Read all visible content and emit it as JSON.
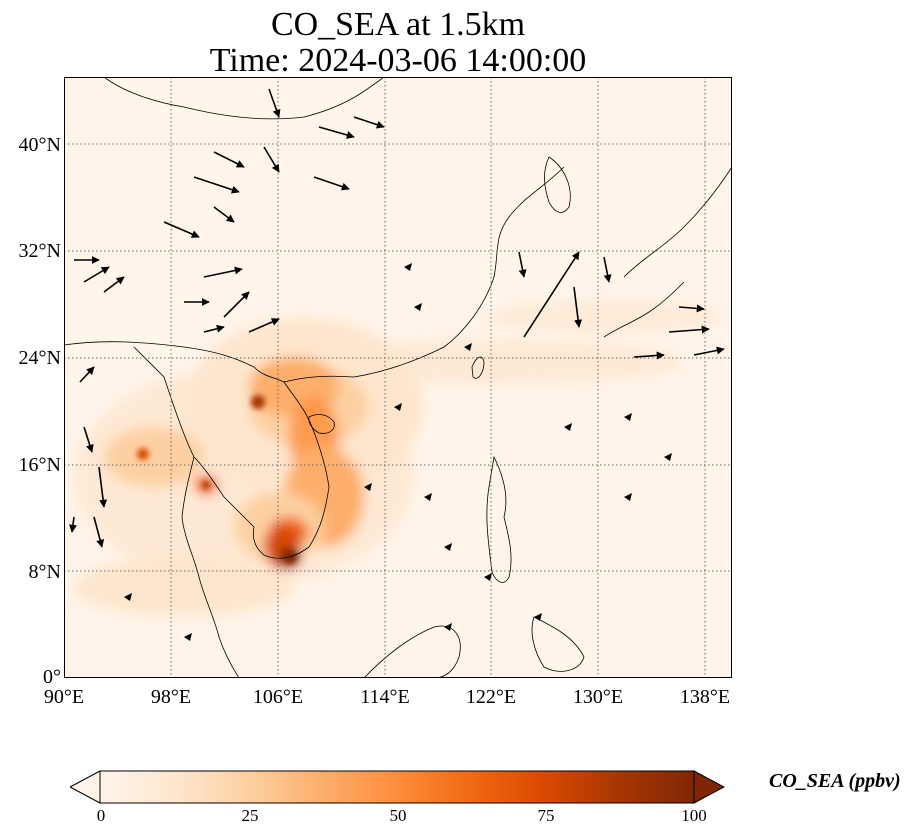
{
  "title": {
    "line1": "CO_SEA at 1.5km",
    "line2": "Time: 2024-03-06 14:00:00"
  },
  "map": {
    "variable": "CO_SEA",
    "level": "1.5km",
    "lon_range": [
      90,
      140
    ],
    "lat_range": [
      0,
      45
    ],
    "lat_ticks": [
      "0°",
      "8°N",
      "16°N",
      "24°N",
      "32°N",
      "40°N"
    ],
    "lon_ticks": [
      "90°E",
      "98°E",
      "106°E",
      "114°E",
      "122°E",
      "130°E",
      "138°E"
    ],
    "gridlines": true,
    "wind_vectors": true
  },
  "colorbar": {
    "label": "CO_SEA (ppbv)",
    "ticks": [
      "0",
      "25",
      "50",
      "75",
      "100"
    ],
    "colormap": [
      "#fff5eb",
      "#fee6ce",
      "#fdd0a2",
      "#fdae6b",
      "#fd8d3c",
      "#f16913",
      "#d94801",
      "#a63603",
      "#7f2704"
    ],
    "extend": "both"
  }
}
